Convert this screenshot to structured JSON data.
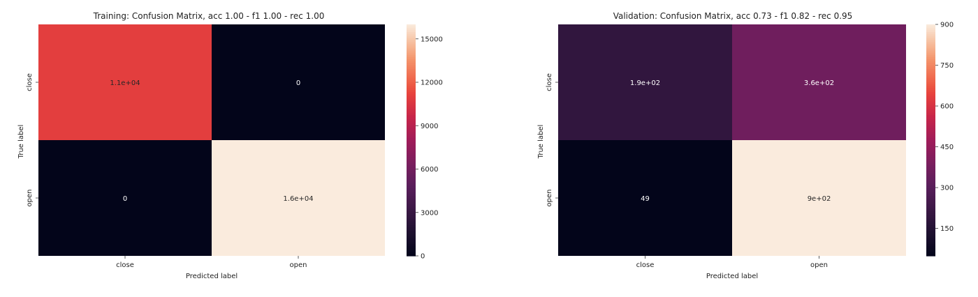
{
  "chart_data": [
    {
      "type": "heatmap",
      "title": "Training: Confusion Matrix, acc 1.00 - f1 1.00 - rec 1.00",
      "xlabel": "Predicted label",
      "ylabel": "True label",
      "x_categories": [
        "close",
        "open"
      ],
      "y_categories": [
        "close",
        "open"
      ],
      "values": [
        [
          11000,
          0
        ],
        [
          0,
          16000
        ]
      ],
      "annotations": [
        [
          "1.1e+04",
          "0"
        ],
        [
          "0",
          "1.6e+04"
        ]
      ],
      "colorbar": {
        "range": [
          0,
          16000
        ],
        "ticks": [
          0,
          3000,
          6000,
          9000,
          12000,
          15000
        ],
        "tick_labels": [
          "0",
          "3000",
          "6000",
          "9000",
          "12000",
          "15000"
        ]
      },
      "colormap": "rocket"
    },
    {
      "type": "heatmap",
      "title": "Validation: Confusion Matrix, acc 0.73 - f1 0.82 - rec 0.95",
      "xlabel": "Predicted label",
      "ylabel": "True label",
      "x_categories": [
        "close",
        "open"
      ],
      "y_categories": [
        "close",
        "open"
      ],
      "values": [
        [
          190,
          360
        ],
        [
          49,
          900
        ]
      ],
      "annotations": [
        [
          "1.9e+02",
          "3.6e+02"
        ],
        [
          "49",
          "9e+02"
        ]
      ],
      "colorbar": {
        "range": [
          49,
          900
        ],
        "ticks": [
          150,
          300,
          450,
          600,
          750,
          900
        ],
        "tick_labels": [
          "150",
          "300",
          "450",
          "600",
          "750",
          "900"
        ]
      },
      "colormap": "rocket"
    }
  ]
}
